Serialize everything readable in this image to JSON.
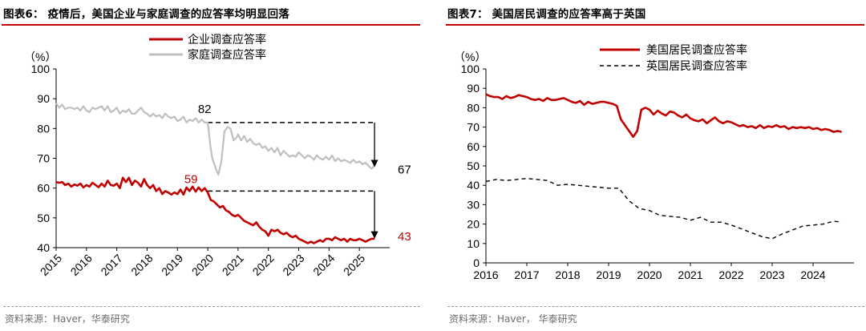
{
  "left_panel": {
    "title": "图表6： 疫情后，美国企业与家庭调查的应答率均明显回落",
    "source": "资料来源：Haver，华泰研究"
  },
  "right_panel": {
    "title": "图表7： 美国居民调查的应答率高于英国",
    "source": "资料来源：Haver， 华泰研究"
  },
  "colors": {
    "red": "#c00000",
    "gray": "#bfbfbf",
    "black": "#000000",
    "title_rule": "#c00000"
  },
  "chart_data": [
    {
      "type": "line",
      "unit_label": "（%）",
      "ylim": [
        40,
        100
      ],
      "yticks": [
        40,
        50,
        60,
        70,
        80,
        90,
        100
      ],
      "xlim": [
        2015,
        2026
      ],
      "xticks": [
        "2015",
        "2016",
        "2017",
        "2018",
        "2019",
        "2020",
        "2021",
        "2022",
        "2023",
        "2024",
        "2025"
      ],
      "legend_position": "top-center",
      "grid": false,
      "series": [
        {
          "name": "企业调查应答率",
          "color": "#c00000",
          "x": [
            2015.0,
            2015.1,
            2015.2,
            2015.3,
            2015.4,
            2015.5,
            2015.6,
            2015.7,
            2015.8,
            2015.9,
            2016.0,
            2016.1,
            2016.2,
            2016.3,
            2016.4,
            2016.5,
            2016.6,
            2016.7,
            2016.8,
            2016.9,
            2017.0,
            2017.1,
            2017.2,
            2017.3,
            2017.4,
            2017.5,
            2017.6,
            2017.7,
            2017.8,
            2017.9,
            2018.0,
            2018.1,
            2018.2,
            2018.3,
            2018.4,
            2018.5,
            2018.6,
            2018.7,
            2018.8,
            2018.9,
            2019.0,
            2019.1,
            2019.2,
            2019.3,
            2019.4,
            2019.5,
            2019.6,
            2019.7,
            2019.8,
            2019.9,
            2020.0,
            2020.1,
            2020.2,
            2020.3,
            2020.4,
            2020.5,
            2020.6,
            2020.7,
            2020.8,
            2020.9,
            2021.0,
            2021.1,
            2021.2,
            2021.3,
            2021.4,
            2021.5,
            2021.6,
            2021.7,
            2021.8,
            2021.9,
            2022.0,
            2022.1,
            2022.2,
            2022.3,
            2022.4,
            2022.5,
            2022.6,
            2022.7,
            2022.8,
            2022.9,
            2023.0,
            2023.1,
            2023.2,
            2023.3,
            2023.4,
            2023.5,
            2023.6,
            2023.7,
            2023.8,
            2023.9,
            2024.0,
            2024.1,
            2024.2,
            2024.3,
            2024.4,
            2024.5,
            2024.6,
            2024.7,
            2024.8,
            2024.9,
            2025.0,
            2025.1,
            2025.2,
            2025.3,
            2025.4,
            2025.5
          ],
          "values": [
            62,
            61.8,
            62,
            61,
            61.5,
            60.5,
            61.2,
            60.8,
            61.5,
            60.2,
            61,
            60.5,
            61.8,
            61,
            60.3,
            61.5,
            60.5,
            62.5,
            61,
            60.8,
            61.5,
            60,
            63.5,
            62,
            63.5,
            61,
            62.5,
            61.8,
            60.5,
            63,
            61,
            60,
            61,
            59,
            60,
            58,
            59,
            58.5,
            57.8,
            58.5,
            58,
            59.5,
            57.8,
            60.2,
            59,
            60.5,
            58.8,
            60.2,
            59,
            60,
            58.5,
            56,
            55.5,
            54.5,
            53.5,
            54,
            52.5,
            52,
            51,
            50.5,
            51,
            50,
            49,
            48.5,
            48,
            47.5,
            48.5,
            47,
            46,
            45.5,
            44,
            46,
            45.5,
            46,
            45,
            44.5,
            45,
            44,
            43.5,
            44,
            43,
            42.5,
            42,
            41.5,
            42,
            41.5,
            42,
            42.5,
            42,
            43,
            43,
            42.5,
            43.5,
            43,
            42.5,
            43,
            42,
            43,
            42.5,
            42.5,
            43,
            42.5,
            42,
            42.5,
            43,
            43
          ],
          "end_label": "43",
          "annotation": {
            "x": 2019.5,
            "y": 59,
            "label": "59"
          }
        },
        {
          "name": "家庭调查应答率",
          "color": "#bfbfbf",
          "x": [
            2015.0,
            2015.1,
            2015.2,
            2015.3,
            2015.4,
            2015.5,
            2015.6,
            2015.7,
            2015.8,
            2015.9,
            2016.0,
            2016.1,
            2016.2,
            2016.3,
            2016.4,
            2016.5,
            2016.6,
            2016.7,
            2016.8,
            2016.9,
            2017.0,
            2017.1,
            2017.2,
            2017.3,
            2017.4,
            2017.5,
            2017.6,
            2017.7,
            2017.8,
            2017.9,
            2018.0,
            2018.1,
            2018.2,
            2018.3,
            2018.4,
            2018.5,
            2018.6,
            2018.7,
            2018.8,
            2018.9,
            2019.0,
            2019.1,
            2019.2,
            2019.3,
            2019.4,
            2019.5,
            2019.6,
            2019.7,
            2019.8,
            2019.9,
            2020.0,
            2020.1,
            2020.15,
            2020.25,
            2020.35,
            2020.45,
            2020.55,
            2020.65,
            2020.75,
            2020.85,
            2020.95,
            2021.0,
            2021.1,
            2021.2,
            2021.3,
            2021.4,
            2021.5,
            2021.6,
            2021.7,
            2021.8,
            2021.9,
            2022.0,
            2022.1,
            2022.2,
            2022.3,
            2022.4,
            2022.5,
            2022.6,
            2022.7,
            2022.8,
            2022.9,
            2023.0,
            2023.1,
            2023.2,
            2023.3,
            2023.4,
            2023.5,
            2023.6,
            2023.7,
            2023.8,
            2023.9,
            2024.0,
            2024.1,
            2024.2,
            2024.3,
            2024.4,
            2024.5,
            2024.6,
            2024.7,
            2024.8,
            2024.9,
            2025.0,
            2025.1,
            2025.2,
            2025.3,
            2025.4,
            2025.5
          ],
          "values": [
            88.5,
            87,
            88,
            86.5,
            87,
            87,
            86.5,
            87,
            86,
            87.5,
            86,
            85.5,
            87,
            86.5,
            87,
            87.5,
            86,
            87.5,
            85.5,
            86,
            87,
            85,
            86,
            85.5,
            86.5,
            85,
            85,
            86,
            87,
            85.5,
            85,
            84,
            85,
            84,
            84.5,
            83.5,
            85,
            84,
            83.5,
            84,
            82.5,
            83,
            84,
            82,
            83,
            82.5,
            83.5,
            82,
            83,
            82,
            82,
            73,
            70,
            67,
            64.5,
            69,
            79,
            80.5,
            80,
            76,
            77,
            78,
            76,
            77.5,
            75.5,
            76.5,
            75,
            74.5,
            75,
            73.5,
            74,
            72.5,
            73.5,
            72,
            73.5,
            71,
            72.5,
            71.5,
            70.5,
            71,
            70.5,
            72,
            71,
            70,
            71,
            70.5,
            69.5,
            71,
            70,
            69.5,
            70.5,
            69.5,
            71,
            69,
            70,
            69,
            69.5,
            69,
            68.5,
            69.5,
            68.5,
            69,
            68,
            68.5,
            67.5,
            66.5,
            67.5
          ],
          "end_label": "67",
          "annotation": {
            "x": 2019.95,
            "y": 82,
            "label": "82"
          }
        }
      ],
      "reference_lines": [
        {
          "from_x": 2020.0,
          "to_x": 2025.5,
          "y": 82
        },
        {
          "from_x": 2020.0,
          "to_x": 2025.5,
          "y": 59
        }
      ],
      "arrows": [
        {
          "x": 2025.5,
          "from_y": 82,
          "to_y": 67
        },
        {
          "x": 2025.5,
          "from_y": 59,
          "to_y": 43
        }
      ]
    },
    {
      "type": "line",
      "unit_label": "（%）",
      "ylim": [
        0,
        100
      ],
      "yticks": [
        0,
        10,
        20,
        30,
        40,
        50,
        60,
        70,
        80,
        90,
        100
      ],
      "xlim": [
        2016,
        2025
      ],
      "xticks": [
        "2016",
        "2017",
        "2018",
        "2019",
        "2020",
        "2021",
        "2022",
        "2023",
        "2024"
      ],
      "legend_position": "top-right",
      "grid": false,
      "series": [
        {
          "name": "美国居民调查应答率",
          "color": "#c00000",
          "style": "solid",
          "x": [
            2016.0,
            2016.1,
            2016.2,
            2016.3,
            2016.4,
            2016.5,
            2016.6,
            2016.7,
            2016.8,
            2016.9,
            2017.0,
            2017.1,
            2017.2,
            2017.3,
            2017.4,
            2017.5,
            2017.6,
            2017.7,
            2017.8,
            2017.9,
            2018.0,
            2018.1,
            2018.2,
            2018.3,
            2018.4,
            2018.5,
            2018.6,
            2018.7,
            2018.8,
            2018.9,
            2019.0,
            2019.1,
            2019.2,
            2019.3,
            2019.4,
            2019.5,
            2019.6,
            2019.7,
            2019.8,
            2019.9,
            2020.0,
            2020.1,
            2020.2,
            2020.3,
            2020.4,
            2020.5,
            2020.6,
            2020.7,
            2020.8,
            2020.9,
            2021.0,
            2021.1,
            2021.2,
            2021.3,
            2021.4,
            2021.5,
            2021.6,
            2021.7,
            2021.8,
            2021.9,
            2022.0,
            2022.1,
            2022.2,
            2022.3,
            2022.4,
            2022.5,
            2022.6,
            2022.7,
            2022.8,
            2022.9,
            2023.0,
            2023.1,
            2023.2,
            2023.3,
            2023.4,
            2023.5,
            2023.6,
            2023.7,
            2023.8,
            2023.9,
            2024.0,
            2024.1,
            2024.2,
            2024.3,
            2024.4,
            2024.5,
            2024.6,
            2024.7
          ],
          "values": [
            87,
            86,
            85.5,
            85.5,
            84.5,
            86,
            85,
            85.5,
            86.5,
            86,
            85.5,
            84.5,
            84,
            84.5,
            83.5,
            85,
            84,
            84,
            84.5,
            85,
            84,
            83,
            82.5,
            83.5,
            81.5,
            83,
            82,
            82.5,
            83,
            83,
            82.5,
            82,
            81,
            74,
            71,
            68,
            65,
            68,
            79,
            80,
            79,
            76.5,
            78.5,
            77,
            76,
            78,
            77.5,
            76,
            75,
            76.5,
            74.5,
            73.5,
            73,
            74,
            72,
            73.5,
            75,
            73,
            72,
            73,
            72.5,
            71.5,
            70.5,
            71,
            70,
            70.5,
            69.5,
            71,
            69.5,
            70.5,
            70,
            71,
            70,
            70.5,
            69,
            70,
            69.5,
            70,
            69.5,
            70,
            69,
            69.5,
            68.5,
            69,
            68.5,
            67.5,
            68,
            67.5
          ]
        },
        {
          "name": "英国居民调查应答率",
          "color": "#000000",
          "style": "dashed",
          "x": [
            2016.0,
            2016.25,
            2016.5,
            2016.75,
            2017.0,
            2017.25,
            2017.5,
            2017.75,
            2018.0,
            2018.25,
            2018.5,
            2018.75,
            2019.0,
            2019.25,
            2019.5,
            2019.75,
            2020.0,
            2020.25,
            2020.5,
            2020.75,
            2021.0,
            2021.25,
            2021.5,
            2021.75,
            2022.0,
            2022.25,
            2022.5,
            2022.75,
            2023.0,
            2023.25,
            2023.5,
            2023.75,
            2024.0,
            2024.25,
            2024.5,
            2024.7
          ],
          "values": [
            42,
            43,
            42.5,
            43,
            43.5,
            43,
            42.5,
            40,
            40.5,
            40,
            39.5,
            39,
            38.5,
            38.5,
            32,
            28,
            27,
            24.5,
            24,
            23.5,
            22,
            23.5,
            21,
            21,
            19.5,
            17.5,
            15.5,
            13.5,
            12.5,
            15,
            17,
            19,
            19.5,
            20,
            21.5,
            21
          ]
        }
      ]
    }
  ]
}
